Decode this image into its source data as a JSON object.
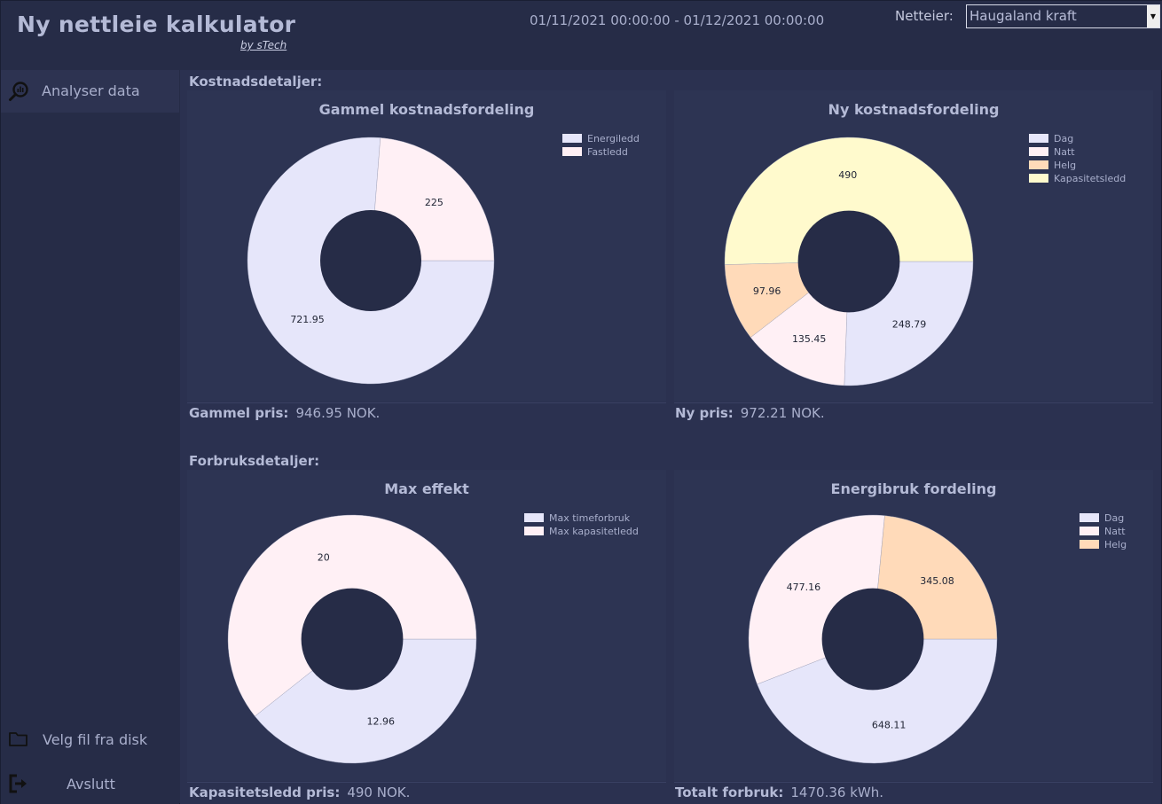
{
  "header": {
    "title": "Ny nettleie kalkulator",
    "subtitle": "by sTech",
    "date_range": "01/11/2021 00:00:00 - 01/12/2021 00:00:00",
    "owner_label": "Netteier:",
    "owner_value": "Haugaland kraft"
  },
  "sidebar": {
    "analyse": {
      "label": "Analyser data",
      "icon": "analytics-icon"
    },
    "open_file": {
      "label": "Velg fil fra disk",
      "icon": "folder-icon"
    },
    "exit": {
      "label": "Avslutt",
      "icon": "exit-icon"
    }
  },
  "colors": {
    "lavender": "#e6e6fa",
    "lavender_blush": "#fff0f5",
    "peach": "#ffdab9",
    "lemon": "#fffacd",
    "hole": "#262c47"
  },
  "sections": {
    "cost": {
      "title": "Kostnadsdetaljer:"
    },
    "usage": {
      "title": "Forbruksdetaljer:"
    }
  },
  "footers": {
    "old_price": {
      "label": "Gammel pris:",
      "value": "946.95 NOK."
    },
    "new_price": {
      "label": "Ny pris:",
      "value": "972.21 NOK."
    },
    "capacity_price": {
      "label": "Kapasitetsledd pris:",
      "value": "490 NOK."
    },
    "total_usage": {
      "label": "Totalt forbruk:",
      "value": "1470.36 kWh."
    }
  },
  "chart_data": [
    {
      "id": "old-cost",
      "type": "pie",
      "title": "Gammel kostnadsfordeling",
      "start_angle_deg": 0,
      "series": [
        {
          "name": "Energiledd",
          "value": 721.95,
          "label": "721.95",
          "color": "#e6e6fa"
        },
        {
          "name": "Fastledd",
          "value": 225,
          "label": "225",
          "color": "#fff0f5"
        }
      ],
      "legend": "top-right"
    },
    {
      "id": "new-cost",
      "type": "pie",
      "title": "Ny kostnadsfordeling",
      "start_angle_deg": 0,
      "series": [
        {
          "name": "Dag",
          "value": 248.79,
          "label": "248.79",
          "color": "#e6e6fa"
        },
        {
          "name": "Natt",
          "value": 135.45,
          "label": "135.45",
          "color": "#fff0f5"
        },
        {
          "name": "Helg",
          "value": 97.96,
          "label": "97.96",
          "color": "#ffdab9"
        },
        {
          "name": "Kapasitetsledd",
          "value": 490,
          "label": "490",
          "color": "#fffacd"
        }
      ],
      "legend": "top-right"
    },
    {
      "id": "max-effect",
      "type": "pie",
      "title": "Max effekt",
      "start_angle_deg": 0,
      "series": [
        {
          "name": "Max timeforbruk",
          "value": 12.96,
          "label": "12.96",
          "color": "#e6e6fa"
        },
        {
          "name": "Max kapasitetledd",
          "value": 20,
          "label": "20",
          "color": "#fff0f5"
        }
      ],
      "legend": "top-right"
    },
    {
      "id": "energy-usage",
      "type": "pie",
      "title": "Energibruk fordeling",
      "start_angle_deg": 0,
      "series": [
        {
          "name": "Dag",
          "value": 648.11,
          "label": "648.11",
          "color": "#e6e6fa"
        },
        {
          "name": "Natt",
          "value": 477.16,
          "label": "477.16",
          "color": "#fff0f5"
        },
        {
          "name": "Helg",
          "value": 345.08,
          "label": "345.08",
          "color": "#ffdab9"
        }
      ],
      "legend": "top-right"
    }
  ]
}
